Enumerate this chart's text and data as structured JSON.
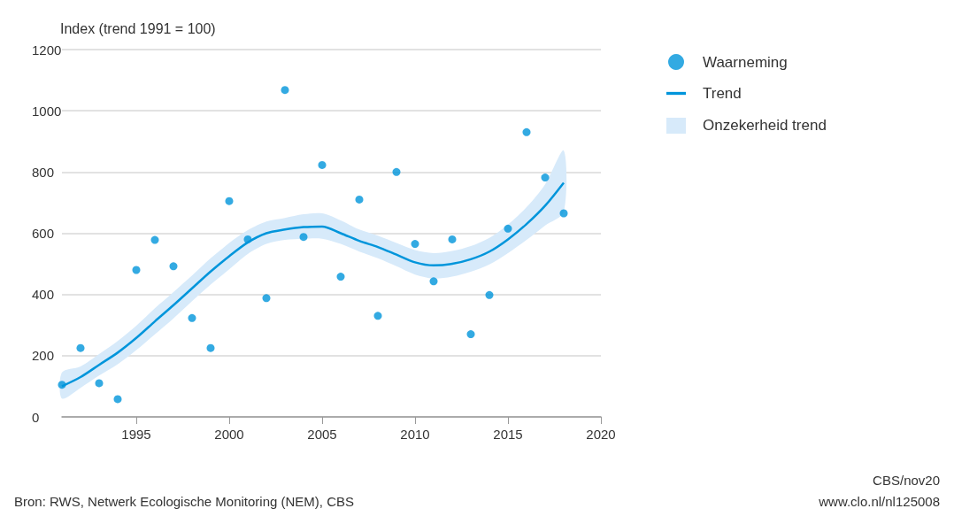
{
  "chart_data": {
    "type": "scatter",
    "ylabel": "Index (trend 1991 = 100)",
    "x": [
      1991,
      1992,
      1993,
      1994,
      1995,
      1996,
      1997,
      1998,
      1999,
      2000,
      2001,
      2002,
      2003,
      2004,
      2005,
      2006,
      2007,
      2008,
      2009,
      2010,
      2011,
      2012,
      2013,
      2014,
      2015,
      2016,
      2017,
      2018
    ],
    "series": [
      {
        "name": "Waarneming",
        "color": "#0095db",
        "values": [
          105,
          225,
          110,
          58,
          480,
          578,
          492,
          323,
          225,
          705,
          580,
          388,
          1068,
          588,
          823,
          458,
          710,
          330,
          800,
          565,
          443,
          580,
          270,
          398,
          615,
          930,
          782,
          665
        ]
      },
      {
        "name": "Trend",
        "type": "line",
        "marker": "none",
        "color": "#0095db",
        "values": [
          100,
          130,
          170,
          210,
          258,
          312,
          365,
          420,
          475,
          525,
          570,
          600,
          612,
          620,
          622,
          600,
          575,
          555,
          530,
          505,
          495,
          500,
          515,
          540,
          580,
          630,
          690,
          765
        ],
        "lower": [
          60,
          95,
          135,
          172,
          218,
          270,
          322,
          378,
          432,
          482,
          532,
          565,
          578,
          582,
          582,
          565,
          540,
          518,
          492,
          465,
          452,
          458,
          474,
          498,
          535,
          578,
          625,
          670
        ],
        "upper": [
          145,
          165,
          205,
          248,
          298,
          355,
          408,
          462,
          518,
          568,
          610,
          638,
          650,
          662,
          665,
          642,
          612,
          592,
          568,
          545,
          535,
          542,
          558,
          585,
          628,
          685,
          760,
          870
        ]
      }
    ],
    "xlim": [
      1991,
      2020
    ],
    "xticks": [
      1995,
      2000,
      2005,
      2010,
      2015,
      2020
    ],
    "ylim": [
      0,
      1200
    ],
    "yticks": [
      0,
      200,
      400,
      600,
      800,
      1000,
      1200
    ],
    "grid": "y",
    "legend": "top right",
    "marker": "circle",
    "annotations": [
      "Bron: RWS, Netwerk Ecologische Monitoring (NEM), CBS",
      "CBS/nov20",
      "www.clo.nl/nl125008",
      "Onzekerheid trend"
    ]
  }
}
